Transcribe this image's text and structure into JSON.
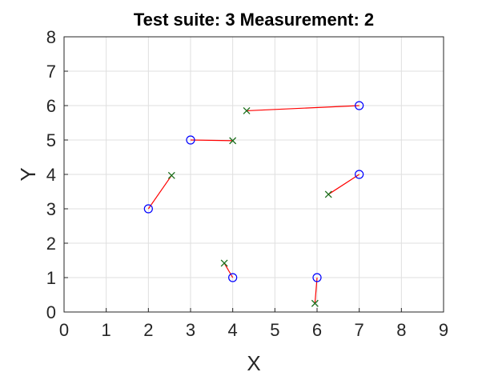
{
  "chart_data": {
    "type": "scatter",
    "title": "Test suite: 3   Measurement: 2",
    "xlabel": "X",
    "ylabel": "Y",
    "xlim": [
      0,
      9
    ],
    "ylim": [
      0,
      8
    ],
    "xticks": [
      "0",
      "1",
      "2",
      "3",
      "4",
      "5",
      "6",
      "7",
      "8",
      "9"
    ],
    "yticks": [
      "0",
      "1",
      "2",
      "3",
      "4",
      "5",
      "6",
      "7",
      "8"
    ],
    "grid": true,
    "series": [
      {
        "marker": "circle",
        "color": "#0000ff",
        "points": [
          {
            "x": 2,
            "y": 3
          },
          {
            "x": 3,
            "y": 5
          },
          {
            "x": 4,
            "y": 1
          },
          {
            "x": 6,
            "y": 1
          },
          {
            "x": 7,
            "y": 4
          },
          {
            "x": 7,
            "y": 6
          }
        ]
      },
      {
        "marker": "x",
        "color": "#1a6e1a",
        "points": [
          {
            "x": 2.55,
            "y": 3.97
          },
          {
            "x": 4.0,
            "y": 4.98
          },
          {
            "x": 3.8,
            "y": 1.42
          },
          {
            "x": 5.95,
            "y": 0.25
          },
          {
            "x": 6.27,
            "y": 3.42
          },
          {
            "x": 4.33,
            "y": 5.85
          }
        ]
      }
    ],
    "links": {
      "color": "#ff0000",
      "pairs": [
        [
          0,
          0
        ],
        [
          1,
          1
        ],
        [
          2,
          2
        ],
        [
          3,
          3
        ],
        [
          4,
          4
        ],
        [
          5,
          5
        ]
      ]
    }
  }
}
